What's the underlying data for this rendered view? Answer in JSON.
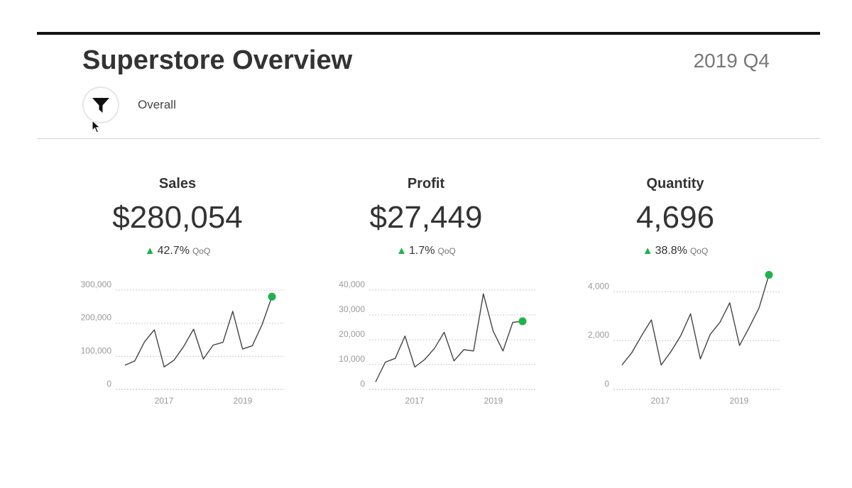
{
  "header": {
    "title": "Superstore Overview",
    "period": "2019 Q4",
    "filter_label": "Overall",
    "filter_icon": "filter-icon"
  },
  "kpis": [
    {
      "title": "Sales",
      "value": "$280,054",
      "change": "42.7%",
      "suffix": "QoQ"
    },
    {
      "title": "Profit",
      "value": "$27,449",
      "change": "1.7%",
      "suffix": "QoQ"
    },
    {
      "title": "Quantity",
      "value": "4,696",
      "change": "38.8%",
      "suffix": "QoQ"
    }
  ],
  "colors": {
    "up": "#1db34d",
    "line": "#444444",
    "highlight": "#1db34d",
    "grid": "#cccccc"
  },
  "chart_data": [
    {
      "type": "line",
      "title": "Sales",
      "x_ticks": [
        "2017",
        "2019"
      ],
      "y_ticks": [
        0,
        100000,
        200000,
        300000
      ],
      "y_tick_labels": [
        "0",
        "100,000",
        "200,000",
        "300,000"
      ],
      "ylim": [
        0,
        300000
      ],
      "x": [
        "2016 Q1",
        "2016 Q2",
        "2016 Q3",
        "2016 Q4",
        "2017 Q1",
        "2017 Q2",
        "2017 Q3",
        "2017 Q4",
        "2018 Q1",
        "2018 Q2",
        "2018 Q3",
        "2018 Q4",
        "2019 Q1",
        "2019 Q2",
        "2019 Q3",
        "2019 Q4"
      ],
      "values": [
        73000,
        86000,
        144000,
        180000,
        68000,
        88000,
        130000,
        182000,
        92000,
        134000,
        142000,
        236000,
        122000,
        132000,
        196000,
        280054
      ],
      "highlight_last": true
    },
    {
      "type": "line",
      "title": "Profit",
      "x_ticks": [
        "2017",
        "2019"
      ],
      "y_ticks": [
        0,
        10000,
        20000,
        30000,
        40000
      ],
      "y_tick_labels": [
        "0",
        "10,000",
        "20,000",
        "30,000",
        "40,000"
      ],
      "ylim": [
        0,
        40000
      ],
      "x": [
        "2016 Q1",
        "2016 Q2",
        "2016 Q3",
        "2016 Q4",
        "2017 Q1",
        "2017 Q2",
        "2017 Q3",
        "2017 Q4",
        "2018 Q1",
        "2018 Q2",
        "2018 Q3",
        "2018 Q4",
        "2019 Q1",
        "2019 Q2",
        "2019 Q3",
        "2019 Q4"
      ],
      "values": [
        3000,
        11000,
        12500,
        21500,
        9000,
        12000,
        16500,
        23000,
        11500,
        16000,
        15500,
        38500,
        23500,
        15500,
        27000,
        27449
      ],
      "highlight_last": true
    },
    {
      "type": "line",
      "title": "Quantity",
      "x_ticks": [
        "2017",
        "2019"
      ],
      "y_ticks": [
        0,
        2000,
        4000
      ],
      "y_tick_labels": [
        "0",
        "2,000",
        "4,000"
      ],
      "ylim": [
        0,
        5000
      ],
      "x": [
        "2016 Q1",
        "2016 Q2",
        "2016 Q3",
        "2016 Q4",
        "2017 Q1",
        "2017 Q2",
        "2017 Q3",
        "2017 Q4",
        "2018 Q1",
        "2018 Q2",
        "2018 Q3",
        "2018 Q4",
        "2019 Q1",
        "2019 Q2",
        "2019 Q3",
        "2019 Q4"
      ],
      "values": [
        1000,
        1500,
        2200,
        2850,
        1000,
        1550,
        2200,
        3100,
        1250,
        2250,
        2750,
        3550,
        1800,
        2550,
        3350,
        4696
      ],
      "highlight_last": true
    }
  ]
}
